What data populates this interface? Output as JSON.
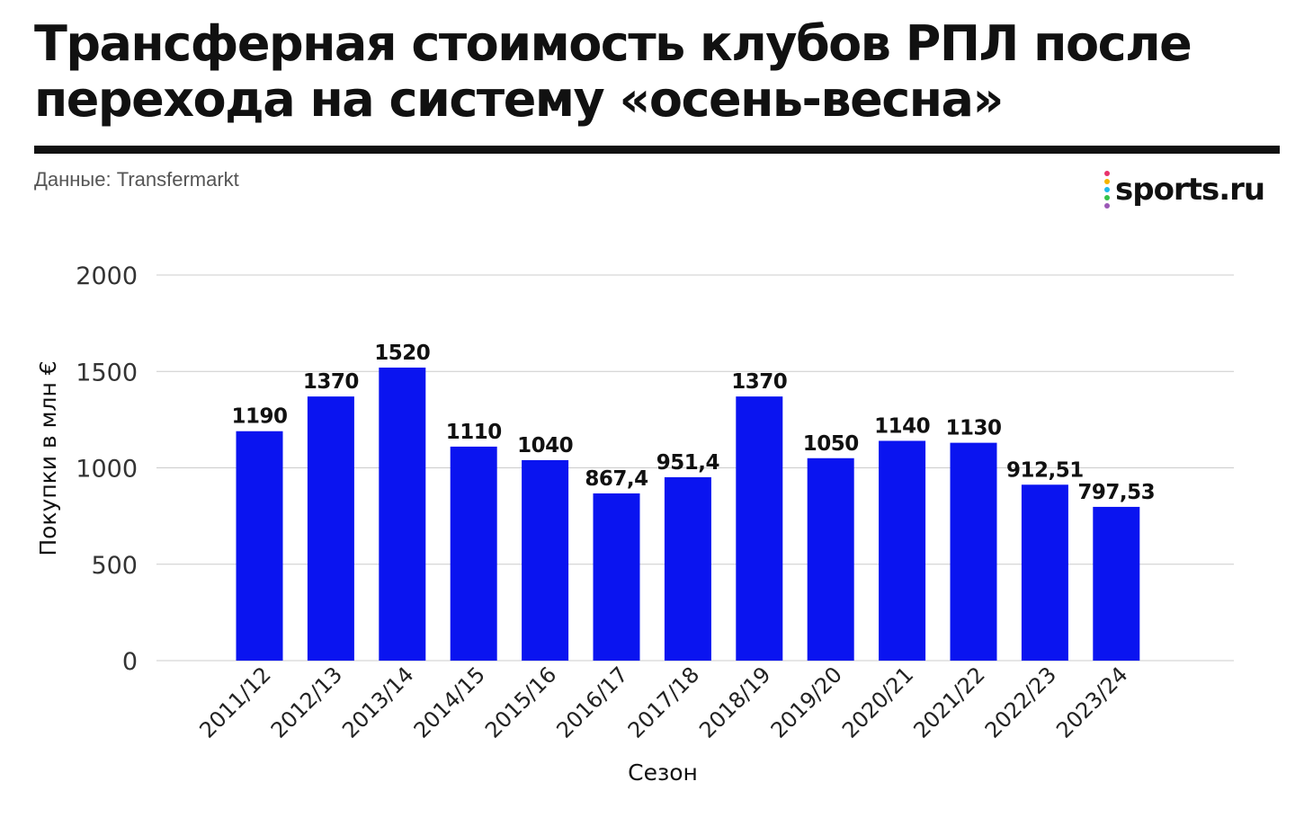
{
  "title": "Трансферная стоимость клубов РПЛ после перехода на систему «осень-весна»",
  "source": "Данные: Transfermarkt",
  "logo": {
    "text": "sports.ru",
    "icon": "sports-ru-dots-logo",
    "dot_colors": [
      "#e8336b",
      "#f5b400",
      "#1fb8e8",
      "#36c24a",
      "#9b59b6"
    ]
  },
  "colors": {
    "bar": "#0a14f0",
    "grid": "#cccccc",
    "text": "#111111",
    "rule": "#111111"
  },
  "chart_data": {
    "type": "bar",
    "title": "",
    "xlabel": "Сезон",
    "ylabel": "Покупки в млн €",
    "ylim": [
      0,
      2000
    ],
    "yticks": [
      0,
      500,
      1000,
      1500,
      2000
    ],
    "grid": true,
    "categories": [
      "2011/12",
      "2012/13",
      "2013/14",
      "2014/15",
      "2015/16",
      "2016/17",
      "2017/18",
      "2018/19",
      "2019/20",
      "2020/21",
      "2021/22",
      "2022/23",
      "2023/24"
    ],
    "values": [
      1190,
      1370,
      1520,
      1110,
      1040,
      867.4,
      951.4,
      1370,
      1050,
      1140,
      1130,
      912.51,
      797.53
    ],
    "value_labels": [
      "1190",
      "1370",
      "1520",
      "1110",
      "1040",
      "867,4",
      "951,4",
      "1370",
      "1050",
      "1140",
      "1130",
      "912,51",
      "797,53"
    ]
  }
}
